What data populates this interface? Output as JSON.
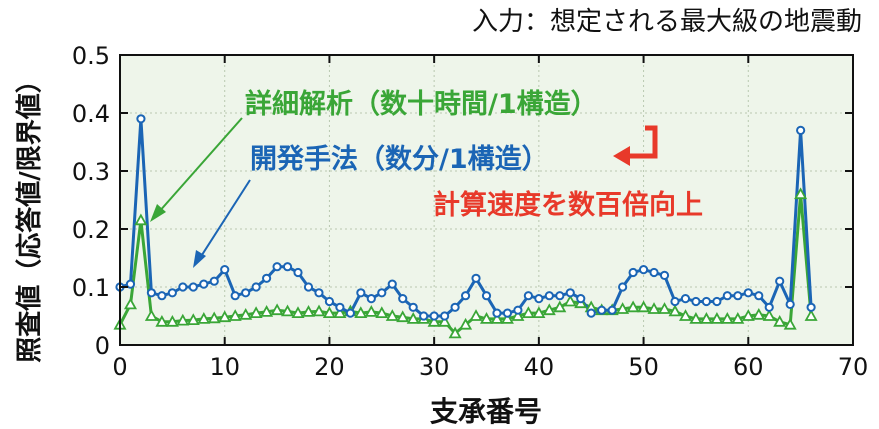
{
  "chart_data": {
    "type": "line",
    "title": "入力：想定される最大級の地震動",
    "xlabel": "支承番号",
    "ylabel": "照査値（応答値/限界値）",
    "xlim": [
      0,
      70
    ],
    "ylim": [
      0,
      0.5
    ],
    "xticks": [
      "0",
      "10",
      "20",
      "30",
      "40",
      "50",
      "60",
      "70"
    ],
    "yticks": [
      "0",
      "0.1",
      "0.2",
      "0.3",
      "0.4",
      "0.5"
    ],
    "grid": true,
    "series": [
      {
        "name": "詳細解析（数十時間/1構造）",
        "color": "#3aa637",
        "marker": "triangle",
        "x": [
          0,
          1,
          2,
          3,
          4,
          5,
          6,
          7,
          8,
          9,
          10,
          11,
          12,
          13,
          14,
          15,
          16,
          17,
          18,
          19,
          20,
          21,
          22,
          23,
          24,
          25,
          26,
          27,
          28,
          29,
          30,
          31,
          32,
          33,
          34,
          35,
          36,
          37,
          38,
          39,
          40,
          41,
          42,
          43,
          44,
          45,
          46,
          47,
          48,
          49,
          50,
          51,
          52,
          53,
          54,
          55,
          56,
          57,
          58,
          59,
          60,
          61,
          62,
          63,
          64,
          65,
          66
        ],
        "y": [
          0.035,
          0.07,
          0.215,
          0.05,
          0.04,
          0.04,
          0.042,
          0.043,
          0.045,
          0.046,
          0.048,
          0.05,
          0.052,
          0.055,
          0.057,
          0.06,
          0.058,
          0.055,
          0.057,
          0.058,
          0.055,
          0.055,
          0.058,
          0.055,
          0.057,
          0.055,
          0.05,
          0.048,
          0.045,
          0.045,
          0.04,
          0.04,
          0.02,
          0.035,
          0.05,
          0.045,
          0.045,
          0.045,
          0.05,
          0.055,
          0.055,
          0.06,
          0.065,
          0.075,
          0.072,
          0.065,
          0.06,
          0.06,
          0.062,
          0.065,
          0.065,
          0.062,
          0.062,
          0.058,
          0.05,
          0.045,
          0.045,
          0.045,
          0.045,
          0.045,
          0.05,
          0.052,
          0.05,
          0.04,
          0.035,
          0.26,
          0.05
        ]
      },
      {
        "name": "開発手法（数分/1構造）",
        "color": "#1b65b5",
        "marker": "circle",
        "x": [
          0,
          1,
          2,
          3,
          4,
          5,
          6,
          7,
          8,
          9,
          10,
          11,
          12,
          13,
          14,
          15,
          16,
          17,
          18,
          19,
          20,
          21,
          22,
          23,
          24,
          25,
          26,
          27,
          28,
          29,
          30,
          31,
          32,
          33,
          34,
          35,
          36,
          37,
          38,
          39,
          40,
          41,
          42,
          43,
          44,
          45,
          46,
          47,
          48,
          49,
          50,
          51,
          52,
          53,
          54,
          55,
          56,
          57,
          58,
          59,
          60,
          61,
          62,
          63,
          64,
          65,
          66
        ],
        "y": [
          0.1,
          0.105,
          0.39,
          0.09,
          0.085,
          0.09,
          0.1,
          0.1,
          0.105,
          0.11,
          0.13,
          0.085,
          0.09,
          0.1,
          0.115,
          0.135,
          0.135,
          0.125,
          0.1,
          0.09,
          0.075,
          0.065,
          0.055,
          0.09,
          0.08,
          0.09,
          0.105,
          0.08,
          0.065,
          0.05,
          0.05,
          0.05,
          0.065,
          0.085,
          0.115,
          0.085,
          0.055,
          0.055,
          0.06,
          0.085,
          0.08,
          0.085,
          0.085,
          0.09,
          0.08,
          0.055,
          0.06,
          0.06,
          0.1,
          0.125,
          0.13,
          0.125,
          0.12,
          0.075,
          0.08,
          0.075,
          0.075,
          0.075,
          0.085,
          0.085,
          0.09,
          0.085,
          0.065,
          0.11,
          0.07,
          0.37,
          0.065
        ]
      }
    ],
    "annotations": {
      "detail_label": "詳細解析（数十時間/1構造）",
      "method_label": "開発手法（数分/1構造）",
      "speedup_label": "計算速度を数百倍向上",
      "detail_color": "#3aa637",
      "method_color": "#1b65b5",
      "speedup_color": "#e8392a"
    },
    "colors": {
      "plot_bg": "#eef5ea",
      "grid": "#b9c8b0",
      "axis": "#111111"
    }
  }
}
